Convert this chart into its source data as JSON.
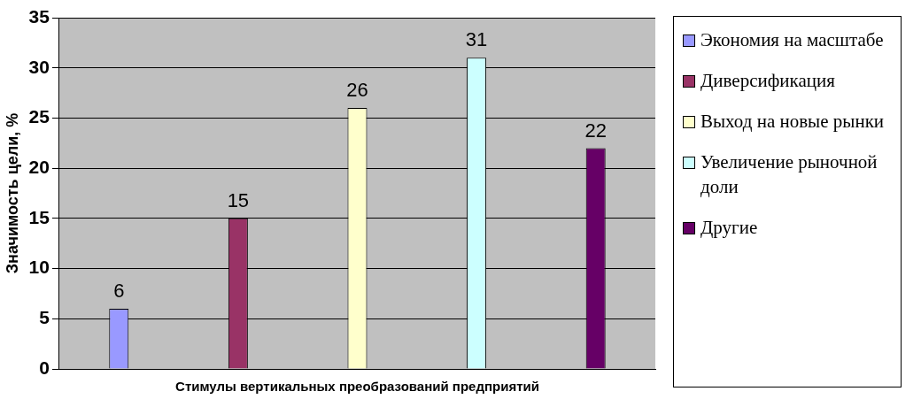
{
  "chart_data": {
    "type": "bar",
    "xlabel": "Стимулы вертикальных преобразований предприятий",
    "ylabel": "Значимость цели, %",
    "categories": [
      null,
      null,
      null,
      null,
      null
    ],
    "series": [
      {
        "name": "Экономия на масштабе",
        "color": "#9999ff",
        "values": [
          6,
          null,
          null,
          null,
          null
        ]
      },
      {
        "name": "Диверсификация",
        "color": "#993366",
        "values": [
          null,
          15,
          null,
          null,
          null
        ]
      },
      {
        "name": "Выход на новые рынки",
        "color": "#ffffcc",
        "values": [
          null,
          null,
          26,
          null,
          null
        ]
      },
      {
        "name": "Увеличение рыночной доли",
        "color": "#ccffff",
        "values": [
          null,
          null,
          null,
          31,
          null
        ]
      },
      {
        "name": "Другие",
        "color": "#660066",
        "values": [
          null,
          null,
          null,
          null,
          22
        ]
      }
    ],
    "ylim": [
      0,
      35
    ],
    "yticks": [
      0,
      5,
      10,
      15,
      20,
      25,
      30,
      35
    ],
    "grid": "y",
    "legend": "right",
    "data_labels": true
  }
}
